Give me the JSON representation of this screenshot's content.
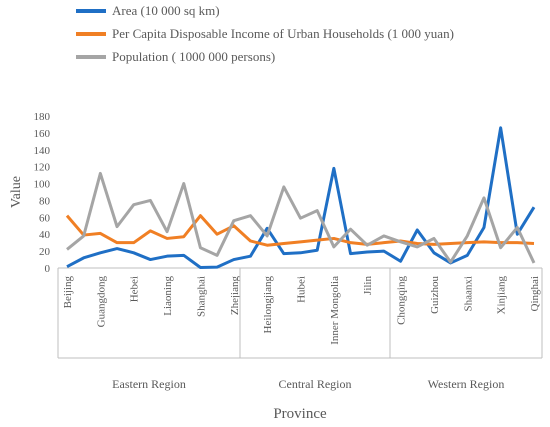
{
  "chart_data": {
    "type": "line",
    "categories": [
      "Beijing",
      null,
      "Guangdong",
      null,
      "Hebei",
      null,
      "Liaoning",
      null,
      "Shanghai",
      null,
      "Zhejiang",
      null,
      "Heilongjiang",
      null,
      "Hubei",
      null,
      "Inner Mongolia",
      null,
      "Jilin",
      null,
      "Chongqing",
      null,
      "Guizhou",
      null,
      "Shaanxi",
      null,
      "Xinjiang",
      null,
      "Qinghai"
    ],
    "groups": [
      "Eastern Region",
      "Central Region",
      "Western Region"
    ],
    "series": [
      {
        "name": "Area (10 000 sq km)",
        "color": "#1f6fc5",
        "values": [
          1.6,
          12,
          18,
          23,
          18,
          10,
          14,
          15,
          0.6,
          1,
          10,
          14,
          47,
          17,
          18,
          21,
          118,
          17,
          19,
          20,
          8,
          45,
          18,
          6,
          15,
          48,
          166,
          40,
          72
        ]
      },
      {
        "name": " Per Capita Disposable Income of Urban Households (1 000 yuan)",
        "color": "#f07f24",
        "values": [
          62,
          39,
          41,
          30,
          30,
          44,
          35,
          37,
          62,
          40,
          50,
          32,
          27,
          29,
          31,
          33,
          35,
          30,
          28,
          30,
          32,
          29,
          28,
          29,
          30,
          31,
          30,
          30,
          29
        ]
      },
      {
        "name": "Population ( 1000 000 persons)",
        "color": "#a5a5a5",
        "values": [
          22,
          38,
          112,
          49,
          75,
          80,
          43,
          100,
          24,
          15,
          56,
          62,
          38,
          96,
          59,
          68,
          25,
          46,
          27,
          38,
          31,
          25,
          35,
          7,
          38,
          83,
          24,
          48,
          6
        ]
      }
    ],
    "ylabel": "Value",
    "xlabel": "Province",
    "ylim": [
      0,
      180
    ],
    "yticks": [
      0,
      20,
      40,
      60,
      80,
      100,
      120,
      140,
      160,
      180
    ],
    "grid": false,
    "legend": "top"
  }
}
